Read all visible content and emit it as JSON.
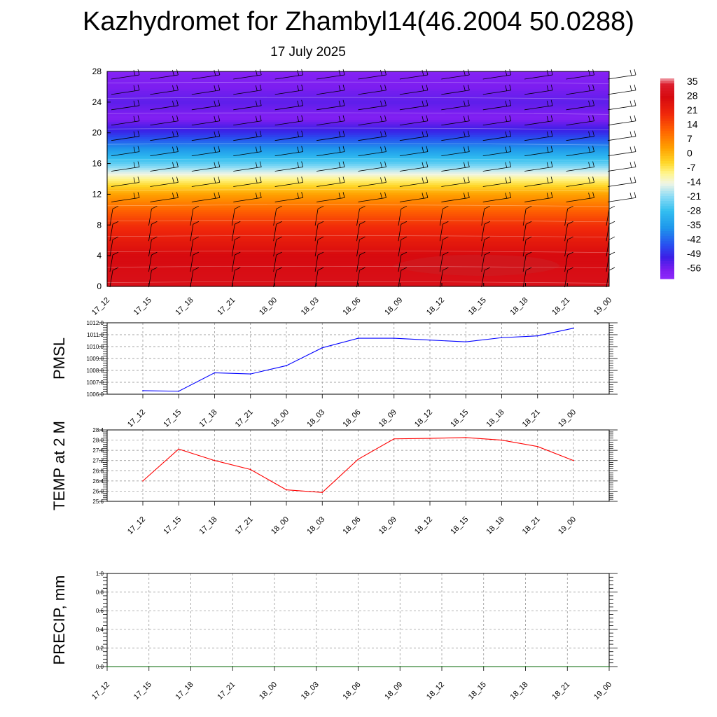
{
  "header": {
    "title": "Kazhydromet for Zhambyl14(46.2004 50.0288)",
    "date": "17 July 2025"
  },
  "chart_data": [
    {
      "type": "heatmap",
      "title": "",
      "xlabel": "",
      "ylabel": "",
      "x_ticks": [
        "17_12",
        "17_15",
        "17_18",
        "17_21",
        "18_00",
        "18_03",
        "18_06",
        "18_09",
        "18_12",
        "18_15",
        "18_18",
        "18_21",
        "19_00"
      ],
      "y_ticks": [
        0,
        4,
        8,
        12,
        16,
        20,
        24,
        28
      ],
      "ylim": [
        0,
        28
      ],
      "temperature_profile_by_level": [
        {
          "level": 0,
          "value": 28
        },
        {
          "level": 4,
          "value": 26
        },
        {
          "level": 8,
          "value": 17
        },
        {
          "level": 10,
          "value": 10
        },
        {
          "level": 12,
          "value": 2
        },
        {
          "level": 14,
          "value": -10
        },
        {
          "level": 16,
          "value": -24
        },
        {
          "level": 18,
          "value": -36
        },
        {
          "level": 20,
          "value": -48
        },
        {
          "level": 22,
          "value": -57
        },
        {
          "level": 24,
          "value": -53
        },
        {
          "level": 26,
          "value": -56
        },
        {
          "level": 28,
          "value": -58
        }
      ],
      "colorbar_labels": [
        "35",
        "28",
        "21",
        "14",
        "7",
        "0",
        "-7",
        "-14",
        "-21",
        "-28",
        "-35",
        "-42",
        "-49",
        "-56"
      ],
      "overlay": "wind barbs"
    },
    {
      "type": "line",
      "ylabel": "PMSL",
      "ylim": [
        1006,
        1012
      ],
      "y_ticks": [
        "1006.0",
        "1007.0",
        "1008.0",
        "1009.0",
        "1010.0",
        "1011.0",
        "1012.0"
      ],
      "x": [
        "17_12",
        "17_15",
        "17_18",
        "17_21",
        "18_00",
        "18_03",
        "18_06",
        "18_09",
        "18_12",
        "18_15",
        "18_18",
        "18_21",
        "19_00"
      ],
      "values": [
        1006.3,
        1006.25,
        1007.8,
        1007.7,
        1008.4,
        1009.9,
        1010.7,
        1010.7,
        1010.55,
        1010.4,
        1010.75,
        1010.9,
        1011.55
      ],
      "color": "#0000ff",
      "grid": true
    },
    {
      "type": "line",
      "ylabel": "TEMP at 2 M",
      "ylim": [
        25.6,
        28.4
      ],
      "y_ticks": [
        "25.6",
        "26.0",
        "26.4",
        "26.8",
        "27.2",
        "27.6",
        "28.0",
        "28.4"
      ],
      "x": [
        "17_12",
        "17_15",
        "17_18",
        "17_21",
        "18_00",
        "18_03",
        "18_06",
        "18_09",
        "18_12",
        "18_15",
        "18_18",
        "18_21",
        "19_00"
      ],
      "values": [
        26.4,
        27.65,
        27.2,
        26.85,
        26.05,
        25.95,
        27.25,
        28.05,
        28.07,
        28.1,
        28.0,
        27.75,
        27.2
      ],
      "color": "#ff0000",
      "grid": true
    },
    {
      "type": "line",
      "ylabel": "PRECIP, mm",
      "ylim": [
        0,
        1
      ],
      "y_ticks": [
        "0.0",
        "0.2",
        "0.4",
        "0.6",
        "0.8",
        "1.0"
      ],
      "x": [
        "17_12",
        "17_15",
        "17_18",
        "17_21",
        "18_00",
        "18_03",
        "18_06",
        "18_09",
        "18_12",
        "18_15",
        "18_18",
        "18_21",
        "19_00"
      ],
      "values": [
        0,
        0,
        0,
        0,
        0,
        0,
        0,
        0,
        0,
        0,
        0,
        0,
        0
      ],
      "color": "#006400",
      "grid": true
    }
  ]
}
